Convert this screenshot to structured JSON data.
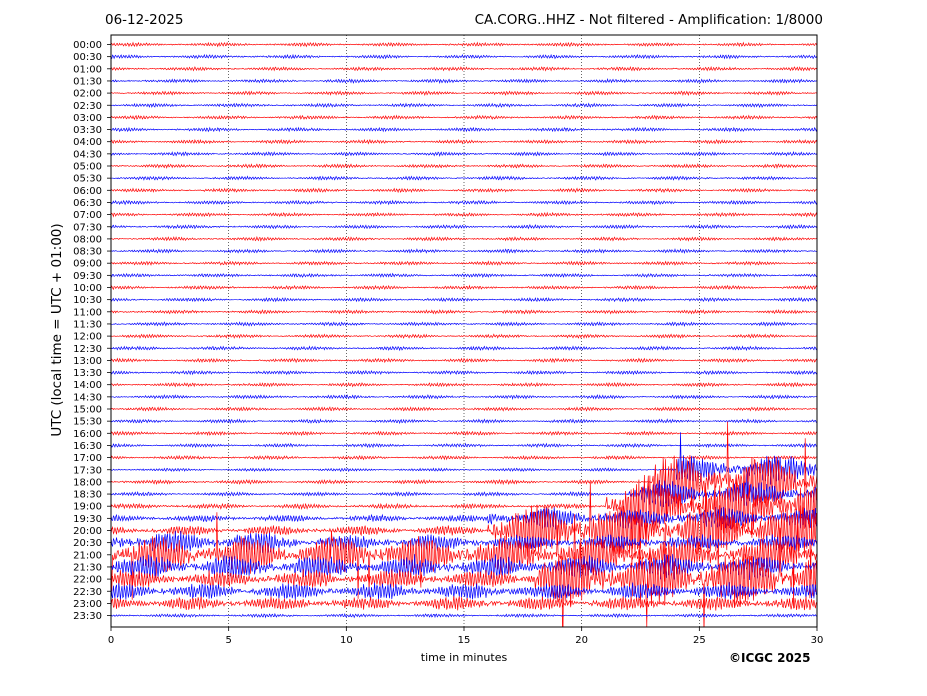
{
  "header": {
    "date": "06-12-2025",
    "title": "CA.CORG..HHZ - Not filtered - Amplification: 1/8000"
  },
  "footer": {
    "copyright": "©ICGC 2025"
  },
  "chart_data": {
    "type": "line",
    "title": "CA.CORG..HHZ - Not filtered - Amplification: 1/8000",
    "xlabel": "time in minutes",
    "ylabel": "UTC (local time = UTC + 01:00)",
    "xlim": [
      0,
      30
    ],
    "xticks": [
      0,
      5,
      10,
      15,
      20,
      25,
      30
    ],
    "x_gridlines": [
      5,
      10,
      15,
      20,
      25
    ],
    "grid": "vertical dotted",
    "rows": [
      "00:00",
      "00:30",
      "01:00",
      "01:30",
      "02:00",
      "02:30",
      "03:00",
      "03:30",
      "04:00",
      "04:30",
      "05:00",
      "05:30",
      "06:00",
      "06:30",
      "07:00",
      "07:30",
      "08:00",
      "08:30",
      "09:00",
      "09:30",
      "10:00",
      "10:30",
      "11:00",
      "11:30",
      "12:00",
      "12:30",
      "13:00",
      "13:30",
      "14:00",
      "14:30",
      "15:00",
      "15:30",
      "16:00",
      "16:30",
      "17:00",
      "17:30",
      "18:00",
      "18:30",
      "19:00",
      "19:30",
      "20:00",
      "20:30",
      "21:00",
      "21:30",
      "22:00",
      "22:30",
      "23:00",
      "23:30"
    ],
    "trace_colors": [
      "#ff0000",
      "#0000ff"
    ],
    "high_activity_rows": [
      "17:30",
      "18:00",
      "18:30",
      "19:00",
      "19:30",
      "20:00",
      "20:30",
      "21:00",
      "21:30",
      "22:00",
      "22:30",
      "23:00"
    ]
  }
}
